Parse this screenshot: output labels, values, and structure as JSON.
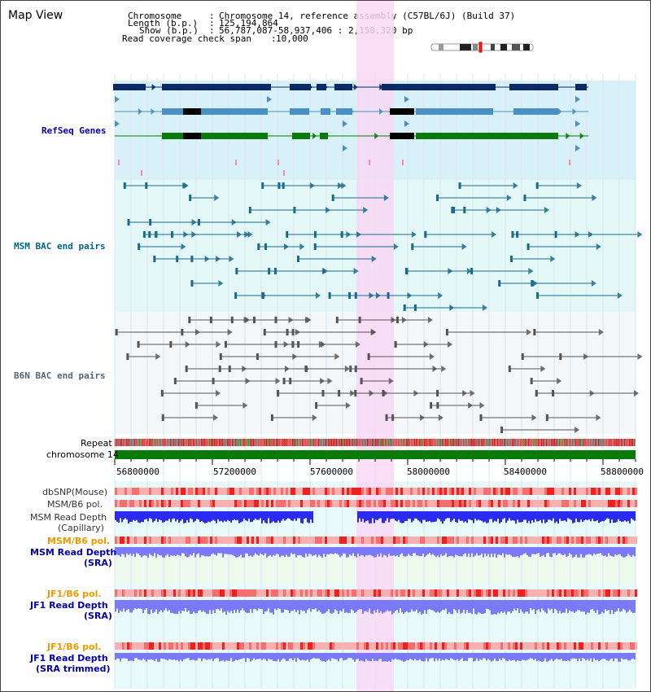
{
  "page_title": "Map View",
  "header": {
    "chromosome_label": "Chromosome",
    "chromosome_value": "Chromosome 14, reference assembly (C57BL/6J) (Build 37)",
    "length_label": "Length (b.p.)",
    "length_value": "125,194,864",
    "show_label": "Show (b.p.)",
    "show_value": "56,787,087-58,937,406 : 2,150,320 bp",
    "coverage_label": "Read coverage check span",
    "coverage_value": "10,000"
  },
  "tracks": {
    "refseq": "RefSeq Genes",
    "msm_bac": "MSM BAC end pairs",
    "b6n_bac": "B6N BAC end pairs",
    "repeat": "Repeat",
    "chromosome": "chromosome 14",
    "dbsnp": "dbSNP(Mouse)",
    "msm_b6_pol": "MSM/B6 pol.",
    "msm_depth_cap": "MSM Read Depth",
    "msm_depth_cap_sub": "(Capillary)",
    "msm_b6_pol_sra": "MSM/B6 pol.",
    "msm_depth_sra": "MSM Read Depth",
    "msm_depth_sra_sub": "(SRA)",
    "jf1_b6_pol": "JF1/B6 pol.",
    "jf1_depth": "JF1 Read Depth",
    "jf1_depth_sub": "(SRA)",
    "jf1_b6_pol_trim": "JF1/B6 pol.",
    "jf1_depth_trim": "JF1 Read Depth",
    "jf1_depth_trim_sub": "(SRA trimmed)"
  },
  "axis_ticks": [
    "56800000",
    "57200000",
    "57600000",
    "58000000",
    "58400000",
    "58800000"
  ],
  "colors": {
    "refseq_dark": "#0a2a66",
    "refseq_mid": "#4a90c0",
    "refseq_green": "#0a7a0a",
    "msm_line": "#1a6a8a",
    "b6n_line": "#555555",
    "highlight": "#f8d8f4",
    "chrom_bar": "#0a7a0a",
    "depth_blue": "#2a2af0",
    "depth_light": "#7a7af8"
  }
}
